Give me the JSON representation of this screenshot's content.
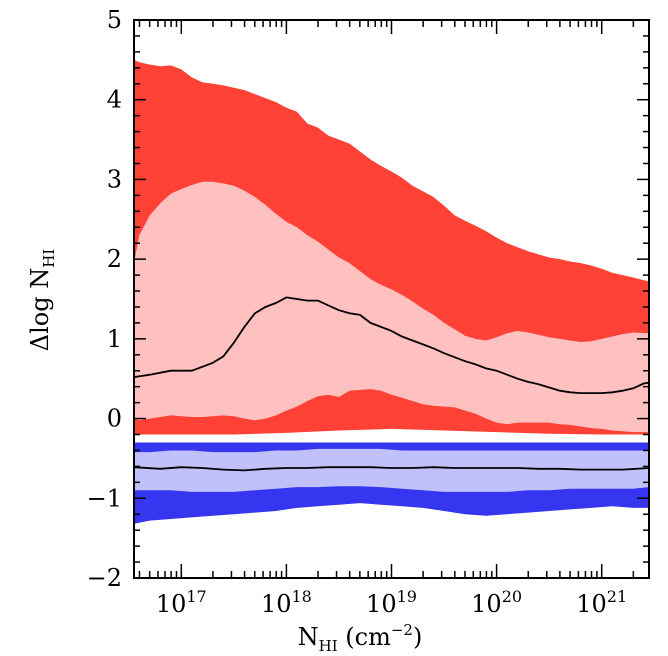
{
  "chart_data": {
    "type": "area",
    "xlabel": {
      "main": "N",
      "sub": "HI",
      "rest": " (cm",
      "sup": "−2",
      "end": ")"
    },
    "ylabel": {
      "main": "Δlog N",
      "sub": "HI"
    },
    "x_log_scale": true,
    "xlim": [
      16.55,
      21.45
    ],
    "ylim": [
      -2,
      5
    ],
    "x_ticks": [
      {
        "value": 17,
        "base": "10",
        "exp": "17"
      },
      {
        "value": 18,
        "base": "10",
        "exp": "18"
      },
      {
        "value": 19,
        "base": "10",
        "exp": "19"
      },
      {
        "value": 20,
        "base": "10",
        "exp": "20"
      },
      {
        "value": 21,
        "base": "10",
        "exp": "21"
      }
    ],
    "y_ticks": [
      "5",
      "4",
      "3",
      "2",
      "1",
      "0",
      "−1",
      "−2"
    ],
    "y_tick_values": [
      5,
      4,
      3,
      2,
      1,
      0,
      -1,
      -2
    ],
    "colors": {
      "red_outer": "#ff4136",
      "red_inner": "#ffc0c0",
      "blue_outer": "#3636f0",
      "blue_inner": "#c0c0fa",
      "line": "#000000"
    },
    "bands": [
      {
        "group": "red",
        "level": "outer",
        "x": [
          16.55,
          16.6,
          16.7,
          16.8,
          16.9,
          17.0,
          17.1,
          17.2,
          17.3,
          17.4,
          17.5,
          17.6,
          17.7,
          17.8,
          17.9,
          18.0,
          18.1,
          18.2,
          18.3,
          18.4,
          18.5,
          18.6,
          18.7,
          18.8,
          18.9,
          19.0,
          19.1,
          19.2,
          19.3,
          19.4,
          19.5,
          19.6,
          19.7,
          19.8,
          19.9,
          20.0,
          20.1,
          20.2,
          20.3,
          20.4,
          20.5,
          20.6,
          20.7,
          20.8,
          20.9,
          21.0,
          21.1,
          21.2,
          21.3,
          21.45
        ],
        "upper": [
          4.5,
          4.47,
          4.44,
          4.42,
          4.43,
          4.38,
          4.28,
          4.22,
          4.2,
          4.18,
          4.15,
          4.12,
          4.07,
          4.02,
          3.97,
          3.9,
          3.85,
          3.7,
          3.65,
          3.55,
          3.5,
          3.45,
          3.35,
          3.25,
          3.17,
          3.1,
          3.02,
          2.92,
          2.85,
          2.78,
          2.67,
          2.55,
          2.48,
          2.42,
          2.35,
          2.27,
          2.2,
          2.15,
          2.1,
          2.06,
          2.02,
          2.0,
          1.97,
          1.95,
          1.92,
          1.88,
          1.83,
          1.8,
          1.77,
          1.72
        ],
        "lower": [
          -0.2,
          -0.2,
          -0.2,
          -0.2,
          -0.2,
          -0.2,
          -0.2,
          -0.2,
          -0.2,
          -0.2,
          -0.2,
          -0.2,
          -0.2,
          -0.2,
          -0.2,
          -0.2,
          -0.2,
          -0.2,
          -0.2,
          -0.2,
          -0.2,
          -0.2,
          -0.2,
          -0.2,
          -0.2,
          -0.2,
          -0.2,
          -0.2,
          -0.2,
          -0.2,
          -0.2,
          -0.2,
          -0.2,
          -0.2,
          -0.2,
          -0.2,
          -0.2,
          -0.2,
          -0.2,
          -0.2,
          -0.2,
          -0.2,
          -0.2,
          -0.2,
          -0.2,
          -0.2,
          -0.2,
          -0.2,
          -0.2,
          -0.2
        ]
      },
      {
        "group": "red",
        "level": "inner",
        "x": [
          16.55,
          16.6,
          16.7,
          16.8,
          16.9,
          17.0,
          17.1,
          17.2,
          17.3,
          17.4,
          17.5,
          17.6,
          17.7,
          17.8,
          17.9,
          18.0,
          18.1,
          18.2,
          18.3,
          18.4,
          18.5,
          18.6,
          18.7,
          18.8,
          18.9,
          19.0,
          19.1,
          19.2,
          19.3,
          19.4,
          19.5,
          19.6,
          19.7,
          19.8,
          19.9,
          20.0,
          20.1,
          20.2,
          20.3,
          20.4,
          20.5,
          20.6,
          20.7,
          20.8,
          20.9,
          21.0,
          21.1,
          21.2,
          21.3,
          21.45
        ],
        "upper": [
          1.95,
          2.3,
          2.55,
          2.7,
          2.82,
          2.88,
          2.93,
          2.97,
          2.97,
          2.95,
          2.92,
          2.86,
          2.78,
          2.68,
          2.57,
          2.47,
          2.4,
          2.3,
          2.22,
          2.12,
          2.02,
          1.95,
          1.85,
          1.75,
          1.68,
          1.62,
          1.55,
          1.47,
          1.38,
          1.3,
          1.2,
          1.12,
          1.04,
          1.0,
          0.98,
          1.02,
          1.07,
          1.1,
          1.08,
          1.05,
          1.02,
          1.0,
          0.98,
          0.96,
          0.97,
          1.0,
          1.03,
          1.06,
          1.08,
          1.07
        ],
        "lower": [
          0.0,
          -0.02,
          0.0,
          0.02,
          0.04,
          0.03,
          0.02,
          0.02,
          0.03,
          0.04,
          0.03,
          0.0,
          -0.02,
          0.0,
          0.04,
          0.1,
          0.15,
          0.22,
          0.28,
          0.3,
          0.27,
          0.35,
          0.36,
          0.37,
          0.35,
          0.3,
          0.26,
          0.22,
          0.18,
          0.16,
          0.15,
          0.14,
          0.1,
          0.06,
          0.0,
          -0.05,
          -0.07,
          -0.05,
          -0.05,
          -0.05,
          -0.05,
          -0.07,
          -0.08,
          -0.1,
          -0.12,
          -0.13,
          -0.15,
          -0.16,
          -0.17,
          -0.17
        ]
      },
      {
        "group": "red",
        "level": "white-gap",
        "x": [
          16.55,
          17.0,
          17.5,
          18.0,
          18.5,
          19.0,
          19.5,
          20.0,
          20.5,
          21.0,
          21.45
        ],
        "upper": [
          -0.2,
          -0.2,
          -0.2,
          -0.18,
          -0.15,
          -0.13,
          -0.15,
          -0.17,
          -0.19,
          -0.2,
          -0.2
        ],
        "lower": [
          -0.3,
          -0.3,
          -0.3,
          -0.3,
          -0.3,
          -0.3,
          -0.3,
          -0.3,
          -0.3,
          -0.3,
          -0.3
        ]
      },
      {
        "group": "blue",
        "level": "outer",
        "x": [
          16.55,
          16.7,
          16.9,
          17.1,
          17.3,
          17.5,
          17.7,
          17.9,
          18.1,
          18.3,
          18.5,
          18.7,
          18.9,
          19.1,
          19.3,
          19.5,
          19.7,
          19.9,
          20.1,
          20.3,
          20.5,
          20.7,
          20.9,
          21.1,
          21.3,
          21.45
        ],
        "upper": [
          -0.3,
          -0.3,
          -0.3,
          -0.3,
          -0.3,
          -0.3,
          -0.3,
          -0.3,
          -0.3,
          -0.3,
          -0.3,
          -0.3,
          -0.3,
          -0.3,
          -0.3,
          -0.3,
          -0.3,
          -0.3,
          -0.3,
          -0.3,
          -0.3,
          -0.3,
          -0.3,
          -0.3,
          -0.3,
          -0.3
        ],
        "lower": [
          -1.32,
          -1.28,
          -1.26,
          -1.24,
          -1.22,
          -1.2,
          -1.18,
          -1.16,
          -1.12,
          -1.1,
          -1.08,
          -1.06,
          -1.08,
          -1.1,
          -1.12,
          -1.16,
          -1.2,
          -1.22,
          -1.2,
          -1.18,
          -1.16,
          -1.14,
          -1.12,
          -1.1,
          -1.12,
          -1.12
        ]
      },
      {
        "group": "blue",
        "level": "inner",
        "x": [
          16.55,
          16.7,
          16.9,
          17.1,
          17.3,
          17.5,
          17.7,
          17.9,
          18.1,
          18.3,
          18.5,
          18.7,
          18.9,
          19.1,
          19.3,
          19.5,
          19.7,
          19.9,
          20.1,
          20.3,
          20.5,
          20.7,
          20.9,
          21.1,
          21.3,
          21.45
        ],
        "upper": [
          -0.42,
          -0.42,
          -0.4,
          -0.4,
          -0.42,
          -0.42,
          -0.42,
          -0.4,
          -0.4,
          -0.38,
          -0.38,
          -0.38,
          -0.38,
          -0.4,
          -0.4,
          -0.4,
          -0.4,
          -0.4,
          -0.4,
          -0.4,
          -0.4,
          -0.4,
          -0.4,
          -0.4,
          -0.4,
          -0.4
        ],
        "lower": [
          -0.9,
          -0.9,
          -0.9,
          -0.92,
          -0.92,
          -0.92,
          -0.9,
          -0.88,
          -0.86,
          -0.86,
          -0.85,
          -0.85,
          -0.86,
          -0.88,
          -0.9,
          -0.92,
          -0.92,
          -0.92,
          -0.92,
          -0.9,
          -0.9,
          -0.88,
          -0.88,
          -0.88,
          -0.88,
          -0.86
        ]
      }
    ],
    "series": [
      {
        "group": "red",
        "x": [
          16.55,
          16.7,
          16.9,
          17.0,
          17.1,
          17.2,
          17.3,
          17.4,
          17.5,
          17.6,
          17.7,
          17.8,
          17.9,
          18.0,
          18.1,
          18.2,
          18.3,
          18.4,
          18.5,
          18.6,
          18.7,
          18.8,
          18.9,
          19.0,
          19.1,
          19.2,
          19.3,
          19.4,
          19.5,
          19.6,
          19.7,
          19.8,
          19.9,
          20.0,
          20.1,
          20.2,
          20.3,
          20.4,
          20.5,
          20.6,
          20.7,
          20.8,
          20.9,
          21.0,
          21.1,
          21.2,
          21.3,
          21.4,
          21.45
        ],
        "values": [
          0.52,
          0.55,
          0.6,
          0.6,
          0.6,
          0.65,
          0.7,
          0.78,
          0.95,
          1.15,
          1.32,
          1.4,
          1.45,
          1.52,
          1.5,
          1.48,
          1.48,
          1.42,
          1.36,
          1.32,
          1.3,
          1.2,
          1.15,
          1.1,
          1.03,
          0.98,
          0.93,
          0.88,
          0.82,
          0.77,
          0.72,
          0.68,
          0.63,
          0.6,
          0.55,
          0.5,
          0.46,
          0.43,
          0.39,
          0.35,
          0.33,
          0.32,
          0.32,
          0.32,
          0.33,
          0.35,
          0.38,
          0.44,
          0.45
        ]
      },
      {
        "group": "blue",
        "x": [
          16.55,
          16.8,
          17.0,
          17.2,
          17.4,
          17.6,
          17.8,
          18.0,
          18.2,
          18.4,
          18.6,
          18.8,
          19.0,
          19.2,
          19.4,
          19.6,
          19.8,
          20.0,
          20.2,
          20.4,
          20.6,
          20.8,
          21.0,
          21.2,
          21.45
        ],
        "values": [
          -0.61,
          -0.63,
          -0.61,
          -0.62,
          -0.64,
          -0.65,
          -0.63,
          -0.62,
          -0.62,
          -0.61,
          -0.61,
          -0.61,
          -0.62,
          -0.62,
          -0.61,
          -0.62,
          -0.62,
          -0.62,
          -0.62,
          -0.63,
          -0.63,
          -0.64,
          -0.64,
          -0.64,
          -0.62
        ]
      }
    ]
  }
}
